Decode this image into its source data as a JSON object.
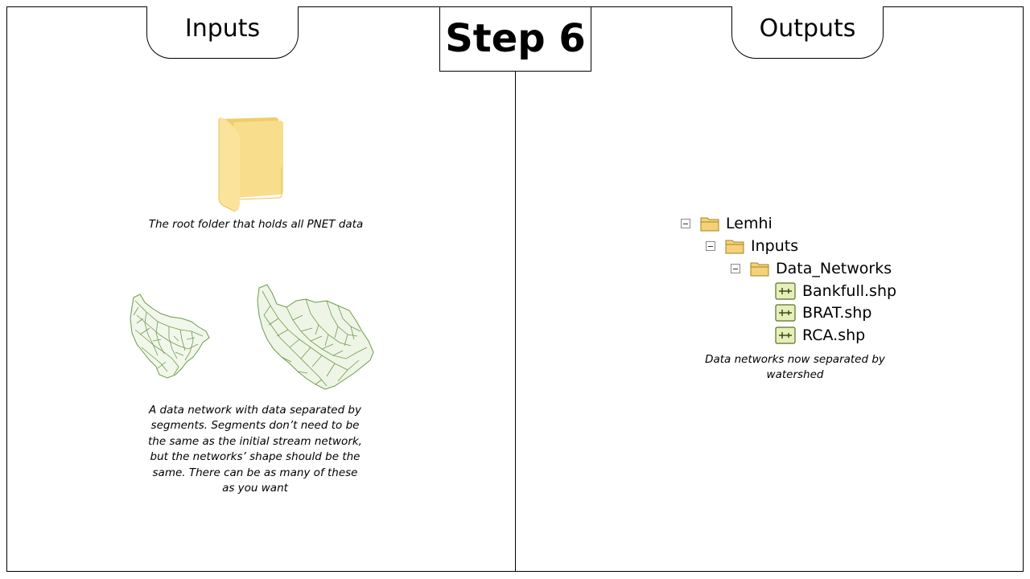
{
  "header": {
    "inputs_label": "Inputs",
    "step_label": "Step 6",
    "outputs_label": "Outputs"
  },
  "inputs": {
    "folder_caption": "The root folder that holds all PNET data",
    "network_caption": "A data network with data separated by segments. Segments don’t need to be the same as the initial stream network, but the networks’ shape should be the same. There can be as many of these as you want"
  },
  "outputs": {
    "tree": [
      {
        "label": "Lemhi",
        "icon": "folder-icon",
        "expander": "collapse-icon"
      },
      {
        "label": "Inputs",
        "icon": "folder-icon",
        "expander": "collapse-icon"
      },
      {
        "label": "Data_Networks",
        "icon": "folder-icon",
        "expander": "collapse-icon"
      },
      {
        "label": "Bankfull.shp",
        "icon": "polyline-shapefile-icon"
      },
      {
        "label": "BRAT.shp",
        "icon": "polyline-shapefile-icon"
      },
      {
        "label": "RCA.shp",
        "icon": "polyline-shapefile-icon"
      }
    ],
    "caption": "Data networks now separated by watershed"
  },
  "colors": {
    "folder": "#f5d77a",
    "folder_dark": "#e8c35a",
    "network": "#6e9a4a",
    "shp_icon_bg": "#e6efb8",
    "shp_icon_border": "#5a6e2a"
  }
}
